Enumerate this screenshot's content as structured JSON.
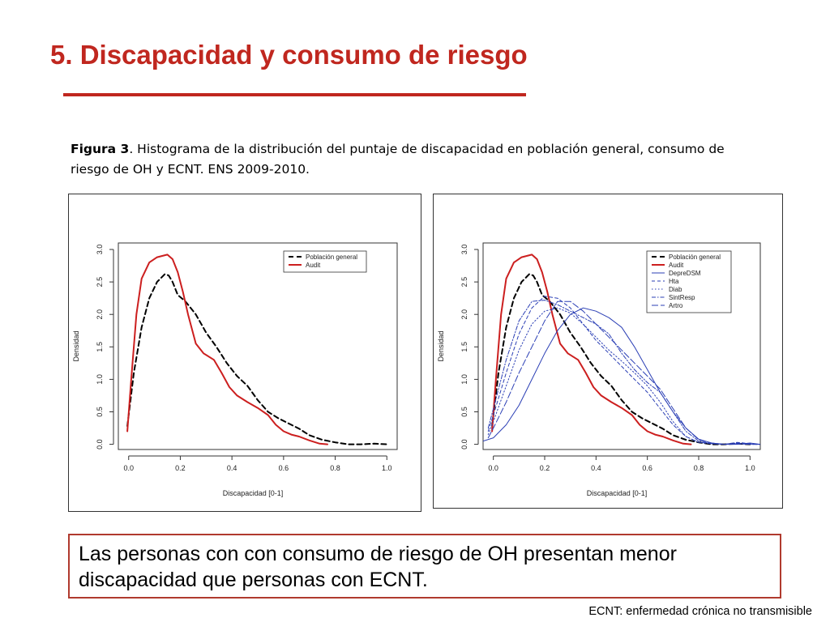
{
  "slide": {
    "title": "5. Discapacidad y consumo de riesgo",
    "caption_label": "Figura 3",
    "caption_text": ". Histograma de la distribución del puntaje de discapacidad en población general, consumo de riesgo de OH y ECNT. ENS 2009-2010.",
    "conclusion": "Las personas con con consumo de riesgo de OH presentan menor discapacidad que personas con ECNT.",
    "footnote": "ECNT: enfermedad crónica no transmisible",
    "title_color": "#c0271f",
    "box_border_color": "#b03a2e"
  },
  "chart_data": [
    {
      "type": "line",
      "xlabel": "Discapacidad [0-1]",
      "ylabel": "Densidad",
      "xlim": [
        -0.04,
        1.04
      ],
      "ylim": [
        -0.08,
        3.1
      ],
      "xticks": [
        0.0,
        0.2,
        0.4,
        0.6,
        0.8,
        1.0
      ],
      "yticks": [
        0.0,
        0.5,
        1.0,
        1.5,
        2.0,
        2.5,
        3.0
      ],
      "xtick_labels": [
        "0.0",
        "0.2",
        "0.4",
        "0.6",
        "0.8",
        "1.0"
      ],
      "ytick_labels": [
        "0.0",
        "0.5",
        "1.0",
        "1.5",
        "2.0",
        "2.5",
        "3.0"
      ],
      "legend_position": "top-right",
      "series": [
        {
          "name": "Población general",
          "color": "#000000",
          "dash": "dashed",
          "width": 2,
          "x": [
            -0.005,
            0.02,
            0.05,
            0.08,
            0.11,
            0.14,
            0.155,
            0.17,
            0.19,
            0.22,
            0.26,
            0.3,
            0.34,
            0.38,
            0.42,
            0.46,
            0.5,
            0.54,
            0.58,
            0.62,
            0.66,
            0.7,
            0.75,
            0.8,
            0.85,
            0.9,
            0.95,
            1.0
          ],
          "y": [
            0.28,
            1.1,
            1.8,
            2.25,
            2.5,
            2.62,
            2.6,
            2.5,
            2.3,
            2.2,
            2.0,
            1.72,
            1.5,
            1.25,
            1.05,
            0.9,
            0.68,
            0.5,
            0.4,
            0.32,
            0.24,
            0.14,
            0.07,
            0.03,
            0.0,
            0.0,
            0.01,
            0.0
          ]
        },
        {
          "name": "Audit",
          "color": "#cc1f1f",
          "dash": "solid",
          "width": 2,
          "x": [
            -0.005,
            0.01,
            0.03,
            0.05,
            0.08,
            0.11,
            0.13,
            0.15,
            0.17,
            0.19,
            0.21,
            0.23,
            0.26,
            0.29,
            0.33,
            0.36,
            0.39,
            0.42,
            0.46,
            0.5,
            0.54,
            0.57,
            0.6,
            0.63,
            0.66,
            0.7,
            0.74,
            0.77
          ],
          "y": [
            0.2,
            1.0,
            2.0,
            2.55,
            2.8,
            2.88,
            2.9,
            2.92,
            2.85,
            2.65,
            2.35,
            2.0,
            1.55,
            1.4,
            1.3,
            1.1,
            0.88,
            0.75,
            0.65,
            0.56,
            0.45,
            0.3,
            0.2,
            0.15,
            0.12,
            0.06,
            0.01,
            0.0
          ]
        }
      ]
    },
    {
      "type": "line",
      "xlabel": "Discapacidad [0-1]",
      "ylabel": "Densidad",
      "xlim": [
        -0.04,
        1.04
      ],
      "ylim": [
        -0.08,
        3.1
      ],
      "xticks": [
        0.0,
        0.2,
        0.4,
        0.6,
        0.8,
        1.0
      ],
      "yticks": [
        0.0,
        0.5,
        1.0,
        1.5,
        2.0,
        2.5,
        3.0
      ],
      "xtick_labels": [
        "0.0",
        "0.2",
        "0.4",
        "0.6",
        "0.8",
        "1.0"
      ],
      "ytick_labels": [
        "0.0",
        "0.5",
        "1.0",
        "1.5",
        "2.0",
        "2.5",
        "3.0"
      ],
      "legend_position": "top-right",
      "series": [
        {
          "name": "Población general",
          "color": "#000000",
          "dash": "dashed",
          "width": 2,
          "x": [
            -0.005,
            0.02,
            0.05,
            0.08,
            0.11,
            0.14,
            0.155,
            0.17,
            0.19,
            0.22,
            0.26,
            0.3,
            0.34,
            0.38,
            0.42,
            0.46,
            0.5,
            0.54,
            0.58,
            0.62,
            0.66,
            0.7,
            0.75,
            0.8,
            0.85,
            0.9,
            0.95,
            1.0
          ],
          "y": [
            0.28,
            1.1,
            1.8,
            2.25,
            2.5,
            2.62,
            2.6,
            2.5,
            2.3,
            2.2,
            2.0,
            1.72,
            1.5,
            1.25,
            1.05,
            0.9,
            0.68,
            0.5,
            0.4,
            0.32,
            0.24,
            0.14,
            0.07,
            0.03,
            0.0,
            0.0,
            0.01,
            0.0
          ]
        },
        {
          "name": "Audit",
          "color": "#cc1f1f",
          "dash": "solid",
          "width": 2,
          "x": [
            -0.005,
            0.01,
            0.03,
            0.05,
            0.08,
            0.11,
            0.13,
            0.15,
            0.17,
            0.19,
            0.21,
            0.23,
            0.26,
            0.29,
            0.33,
            0.36,
            0.39,
            0.42,
            0.46,
            0.5,
            0.54,
            0.57,
            0.6,
            0.63,
            0.66,
            0.7,
            0.74,
            0.77
          ],
          "y": [
            0.2,
            1.0,
            2.0,
            2.55,
            2.8,
            2.88,
            2.9,
            2.92,
            2.85,
            2.65,
            2.35,
            2.0,
            1.55,
            1.4,
            1.3,
            1.1,
            0.88,
            0.75,
            0.65,
            0.56,
            0.45,
            0.3,
            0.2,
            0.15,
            0.12,
            0.06,
            0.01,
            0.0
          ]
        },
        {
          "name": "DepreDSM",
          "color": "#2b3fb5",
          "dash": "solid",
          "width": 1,
          "x": [
            -0.04,
            0.0,
            0.05,
            0.1,
            0.15,
            0.2,
            0.25,
            0.3,
            0.35,
            0.4,
            0.45,
            0.5,
            0.55,
            0.6,
            0.65,
            0.7,
            0.75,
            0.8,
            0.85,
            0.9,
            0.95,
            1.0,
            1.04
          ],
          "y": [
            0.05,
            0.1,
            0.3,
            0.6,
            1.0,
            1.4,
            1.75,
            2.0,
            2.1,
            2.05,
            1.95,
            1.8,
            1.5,
            1.15,
            0.8,
            0.5,
            0.25,
            0.08,
            0.02,
            0.0,
            0.0,
            0.02,
            0.0
          ]
        },
        {
          "name": "Hta",
          "color": "#2b3fb5",
          "dash": "dashed",
          "width": 1,
          "x": [
            -0.02,
            0.0,
            0.05,
            0.1,
            0.15,
            0.2,
            0.25,
            0.3,
            0.35,
            0.4,
            0.45,
            0.5,
            0.55,
            0.6,
            0.65,
            0.7,
            0.75,
            0.8,
            0.85,
            0.9,
            0.95,
            1.0,
            1.04
          ],
          "y": [
            0.2,
            0.45,
            1.1,
            1.7,
            2.1,
            2.28,
            2.25,
            2.1,
            1.85,
            1.6,
            1.4,
            1.2,
            1.0,
            0.8,
            0.55,
            0.3,
            0.12,
            0.03,
            0.01,
            0.0,
            0.03,
            0.01,
            0.0
          ]
        },
        {
          "name": "Diab",
          "color": "#2b3fb5",
          "dash": "dotted",
          "width": 1,
          "x": [
            -0.02,
            0.0,
            0.05,
            0.1,
            0.15,
            0.2,
            0.25,
            0.3,
            0.35,
            0.4,
            0.45,
            0.5,
            0.55,
            0.6,
            0.65,
            0.7,
            0.75,
            0.8,
            0.85,
            0.9,
            0.95,
            1.0,
            1.04
          ],
          "y": [
            0.15,
            0.35,
            0.9,
            1.45,
            1.85,
            2.05,
            2.1,
            2.02,
            1.85,
            1.65,
            1.45,
            1.28,
            1.1,
            0.9,
            0.65,
            0.35,
            0.12,
            0.03,
            0.01,
            0.0,
            0.01,
            0.0,
            0.0
          ]
        },
        {
          "name": "SintResp",
          "color": "#2b3fb5",
          "dash": "dashdot",
          "width": 1,
          "x": [
            -0.02,
            0.0,
            0.05,
            0.1,
            0.15,
            0.2,
            0.25,
            0.3,
            0.35,
            0.4,
            0.45,
            0.5,
            0.55,
            0.6,
            0.65,
            0.7,
            0.75,
            0.8,
            0.85,
            0.9,
            0.95,
            1.0,
            1.04
          ],
          "y": [
            0.25,
            0.55,
            1.3,
            1.9,
            2.2,
            2.22,
            2.15,
            2.05,
            1.95,
            1.85,
            1.7,
            1.4,
            1.15,
            0.95,
            0.8,
            0.5,
            0.2,
            0.05,
            0.01,
            0.0,
            0.02,
            0.0,
            0.0
          ]
        },
        {
          "name": "Artro",
          "color": "#2b3fb5",
          "dash": "longdash",
          "width": 1,
          "x": [
            -0.02,
            0.0,
            0.05,
            0.1,
            0.15,
            0.2,
            0.25,
            0.3,
            0.35,
            0.4,
            0.45,
            0.5,
            0.55,
            0.6,
            0.65,
            0.7,
            0.75,
            0.8,
            0.85,
            0.9,
            0.95,
            1.0,
            1.04
          ],
          "y": [
            0.1,
            0.25,
            0.65,
            1.1,
            1.5,
            1.9,
            2.2,
            2.2,
            2.05,
            1.85,
            1.65,
            1.45,
            1.25,
            1.05,
            0.85,
            0.55,
            0.25,
            0.07,
            0.02,
            0.0,
            0.01,
            0.0,
            0.0
          ]
        }
      ]
    }
  ]
}
